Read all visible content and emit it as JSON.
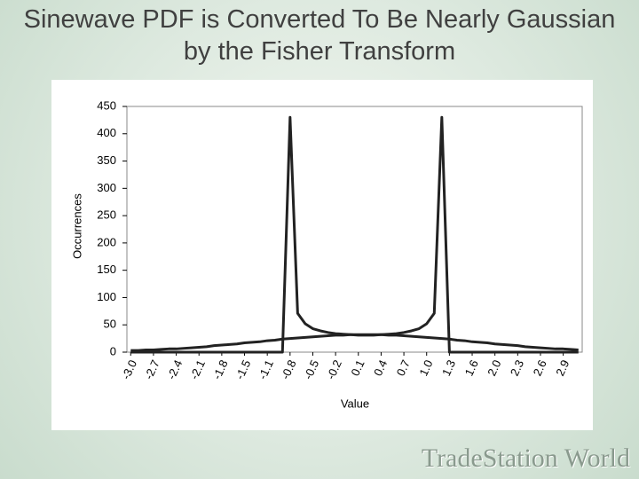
{
  "chart_data": {
    "type": "line",
    "title": "Sinewave PDF is Converted To Be Nearly Gaussian by the Fisher Transform",
    "xlabel": "Value",
    "ylabel": "Occurrences",
    "categories": [
      "-3.0",
      null,
      null,
      "-2.7",
      null,
      null,
      "-2.4",
      null,
      null,
      "-2.1",
      null,
      null,
      "-1.8",
      null,
      null,
      "-1.5",
      null,
      null,
      "-1.1",
      null,
      null,
      "-0.8",
      null,
      null,
      "-0.5",
      null,
      null,
      "-0.2",
      null,
      null,
      "0.1",
      null,
      null,
      "0.4",
      null,
      null,
      "0.7",
      null,
      null,
      "1.0",
      null,
      null,
      "1.3",
      null,
      null,
      "1.6",
      null,
      null,
      "2.0",
      null,
      null,
      "2.3",
      null,
      null,
      "2.6",
      null,
      null,
      "2.9",
      null,
      null
    ],
    "series": [
      {
        "color": "#222222",
        "values": [
          0,
          0,
          0,
          0,
          0,
          0,
          0,
          0,
          0,
          0,
          0,
          0,
          0,
          0,
          0,
          0,
          0,
          0,
          0,
          0,
          0,
          430,
          71,
          52,
          43,
          39,
          36,
          34,
          33,
          32,
          31,
          31,
          31,
          32,
          33,
          34,
          36,
          39,
          43,
          52,
          71,
          430,
          0,
          0,
          0,
          0,
          0,
          0,
          0,
          0,
          0,
          0,
          0,
          0,
          0,
          0,
          0,
          0,
          0,
          0
        ]
      },
      {
        "color": "#222222",
        "values": [
          3,
          3,
          4,
          4,
          5,
          6,
          6,
          7,
          8,
          9,
          10,
          12,
          13,
          14,
          15,
          17,
          18,
          19,
          21,
          22,
          24,
          25,
          26,
          27,
          28,
          29,
          30,
          31,
          31,
          32,
          32,
          32,
          32,
          32,
          31,
          31,
          30,
          29,
          28,
          27,
          26,
          25,
          24,
          22,
          21,
          19,
          18,
          17,
          15,
          14,
          13,
          12,
          10,
          9,
          8,
          7,
          6,
          6,
          5,
          4
        ]
      }
    ],
    "ylim": [
      0,
      450
    ],
    "yticks": [
      0,
      50,
      100,
      150,
      200,
      250,
      300,
      350,
      400,
      450
    ]
  },
  "footer": {
    "logo": "TradeStation World"
  }
}
